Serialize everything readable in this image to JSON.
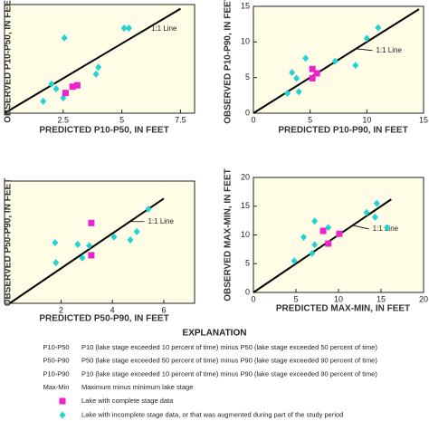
{
  "chart_data": [
    {
      "type": "scatter",
      "xlabel": "PREDICTED P10-P50, IN FEET",
      "ylabel": "OBSERVED P10-P50, IN FEET",
      "xlim": [
        0,
        8.1
      ],
      "ylim": [
        0,
        7.8
      ],
      "xticks": [
        2.5,
        5,
        7.5
      ],
      "yticks": [],
      "reference_line": {
        "x": [
          0,
          7.5
        ],
        "y": [
          0,
          7.5
        ],
        "label": "1:1 Line"
      },
      "series": [
        {
          "color": "#22d3d3",
          "marker": "diamond",
          "x": [
            1.65,
            2.0,
            2.2,
            2.55,
            2.5,
            4.0,
            3.9,
            5.1,
            5.3
          ],
          "values": [
            0.85,
            2.1,
            1.75,
            5.4,
            1.1,
            3.3,
            2.8,
            6.1,
            6.1
          ]
        },
        {
          "color": "#ee22cc",
          "marker": "square",
          "x": [
            2.6,
            2.9,
            3.1
          ],
          "values": [
            1.45,
            1.9,
            2.0
          ]
        }
      ]
    },
    {
      "type": "scatter",
      "xlabel": "PREDICTED P10-P90, IN FEET",
      "ylabel": "OBSERVED P10-P90, IN FEET",
      "xlim": [
        0,
        15
      ],
      "ylim": [
        0,
        15
      ],
      "xticks": [
        0,
        5,
        10,
        15
      ],
      "yticks": [
        0,
        5,
        10,
        15
      ],
      "reference_line": {
        "x": [
          0,
          14.6
        ],
        "y": [
          0,
          14.6
        ],
        "label": "1:1 Line"
      },
      "series": [
        {
          "color": "#22d3d3",
          "marker": "diamond",
          "x": [
            4.6,
            3.4,
            3.8,
            3.0,
            4.0,
            7.2,
            9.0,
            10.0,
            11.0
          ],
          "values": [
            7.7,
            5.7,
            4.9,
            2.8,
            3.0,
            7.3,
            6.7,
            10.5,
            12.0
          ]
        },
        {
          "color": "#ee22cc",
          "marker": "square",
          "x": [
            5.2,
            5.6,
            5.2
          ],
          "values": [
            6.2,
            5.6,
            4.9
          ]
        }
      ]
    },
    {
      "type": "scatter",
      "xlabel": "PREDICTED P50-P90, IN FEET",
      "ylabel": "OBSERVED P50-P90, IN FEET",
      "xlim": [
        -0.2,
        7.2
      ],
      "ylim": [
        0,
        7
      ],
      "xticks": [
        2,
        4,
        6
      ],
      "yticks": [],
      "reference_line": {
        "x": [
          0,
          6
        ],
        "y": [
          0,
          6
        ],
        "label": "1:1 Line"
      },
      "series": [
        {
          "color": "#22d3d3",
          "marker": "diamond",
          "x": [
            1.77,
            1.8,
            2.65,
            2.83,
            3.1,
            4.06,
            4.7,
            4.95,
            5.4
          ],
          "values": [
            3.47,
            2.33,
            3.37,
            2.6,
            3.3,
            3.8,
            3.63,
            4.1,
            5.4
          ]
        },
        {
          "color": "#ee22cc",
          "marker": "square",
          "x": [
            3.18,
            3.18
          ],
          "values": [
            4.6,
            2.75
          ]
        }
      ]
    },
    {
      "type": "scatter",
      "xlabel": "PREDICTED MAX-MIN, IN FEET",
      "ylabel": "OBSERVED MAX-MIN, IN FEET",
      "xlim": [
        0,
        20
      ],
      "ylim": [
        0,
        20
      ],
      "xticks": [
        0,
        5,
        10,
        15,
        20
      ],
      "yticks": [
        0,
        5,
        10,
        15,
        20
      ],
      "reference_line": {
        "x": [
          0,
          16.2
        ],
        "y": [
          0,
          16.2
        ],
        "label": "1:1 Line"
      },
      "series": [
        {
          "color": "#22d3d3",
          "marker": "diamond",
          "x": [
            4.8,
            5.9,
            6.9,
            7.2,
            7.2,
            8.8,
            13.3,
            14.5,
            14.3,
            15.7
          ],
          "values": [
            5.5,
            9.6,
            6.8,
            8.3,
            12.4,
            11.3,
            13.9,
            15.5,
            13.1,
            11.3
          ]
        },
        {
          "color": "#ee22cc",
          "marker": "square",
          "x": [
            8.2,
            8.8,
            10.1
          ],
          "values": [
            10.7,
            8.5,
            10.2
          ]
        }
      ]
    }
  ],
  "explanation": {
    "title": "EXPLANATION",
    "terms": [
      [
        "P10-P50",
        "P10 (lake stage exceeded 10 percent of time) minus P50 (lake stage exceeded 50 percent of time)"
      ],
      [
        "P50-P90",
        "P50 (lake stage exceeded 50 percent of time) minus P90 (lake stage exceeded 90 percent of time)"
      ],
      [
        "P10-P90",
        "P10 (lake stage exceeded 10 percent of time) minus P90 (lake stage exceeded 90 percent of time)"
      ],
      [
        "Max-Min",
        "Maximum minus minimum lake stage"
      ]
    ],
    "symbols": [
      {
        "color": "#ee22cc",
        "marker": "square",
        "text": "Lake with complete stage data"
      },
      {
        "color": "#22d3d3",
        "marker": "diamond",
        "text": "Lake with incomplete stage data, or that was augmented during part of the study period"
      }
    ]
  }
}
